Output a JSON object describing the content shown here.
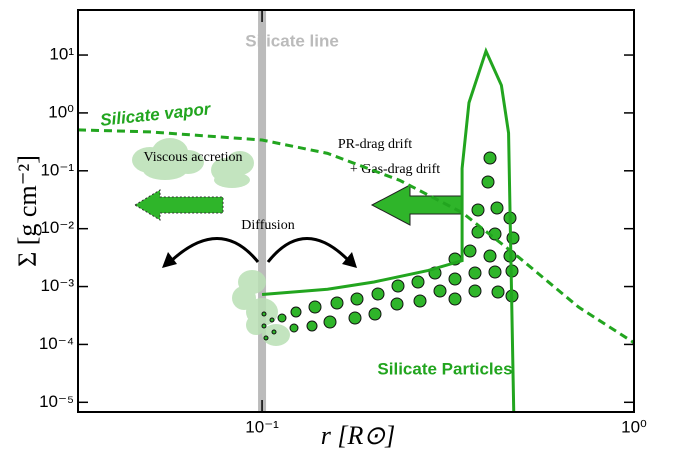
{
  "chart_data": {
    "type": "line",
    "xlabel": "r [R⊙]",
    "ylabel": "Σ [g cm⁻²]",
    "xscale": "log",
    "yscale": "log",
    "xlim": [
      0.032,
      1
    ],
    "ylim": [
      6.8e-06,
      60
    ],
    "xticks": [
      {
        "value": 0.1,
        "label": "10⁻¹"
      },
      {
        "value": 1,
        "label": "10⁰"
      }
    ],
    "yticks": [
      {
        "value": 1e-05,
        "label": "10⁻⁵"
      },
      {
        "value": 0.0001,
        "label": "10⁻⁴"
      },
      {
        "value": 0.001,
        "label": "10⁻³"
      },
      {
        "value": 0.01,
        "label": "10⁻²"
      },
      {
        "value": 0.1,
        "label": "10⁻¹"
      },
      {
        "value": 1,
        "label": "10⁰"
      },
      {
        "value": 10,
        "label": "10¹"
      }
    ],
    "vline": {
      "x": 0.1,
      "label": "Silicate line",
      "color": "#bbbbbb"
    },
    "series": [
      {
        "name": "Silicate vapor",
        "color": "#22a51f",
        "dash": true,
        "x": [
          0.032,
          0.05,
          0.1,
          0.15,
          0.235,
          0.345,
          0.49,
          0.71,
          1.0
        ],
        "values": [
          0.51,
          0.47,
          0.34,
          0.2,
          0.068,
          0.019,
          0.0032,
          0.00044,
          0.000107
        ]
      },
      {
        "name": "Silicate Particles",
        "color": "#22a51f",
        "dash": false,
        "x": [
          0.1,
          0.15,
          0.2,
          0.28,
          0.345,
          0.345,
          0.36,
          0.4,
          0.44,
          0.46,
          0.475
        ],
        "values": [
          0.00073,
          0.0009,
          0.0012,
          0.0019,
          0.0028,
          0.11,
          1.5,
          11.7,
          3,
          0.45,
          6.8e-06
        ]
      }
    ],
    "annotations": [
      "Viscous accretion",
      "Diffusion",
      "PR-drag drift",
      "+ Gas-drag drift"
    ]
  }
}
